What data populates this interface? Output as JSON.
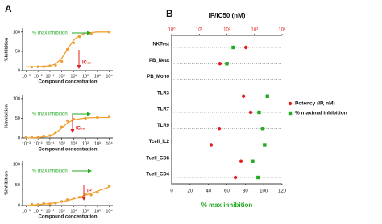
{
  "panel_labels": [
    "A",
    "B"
  ],
  "chart_data": [
    {
      "type": "dose",
      "ylabel": "%Inhibition",
      "xlabel": "Compound concentration",
      "xscale": "log",
      "xlim": [
        0.0005,
        20000
      ],
      "ylim": [
        0,
        110
      ],
      "yticks": [
        0,
        50,
        100
      ],
      "xticks": [
        {
          "value": 0.001,
          "label": "10⁻³"
        },
        {
          "value": 0.01,
          "label": "10⁻²"
        },
        {
          "value": 0.1,
          "label": "10⁻¹"
        },
        {
          "value": 1,
          "label": "10⁰"
        },
        {
          "value": 10,
          "label": "10¹"
        },
        {
          "value": 100,
          "label": "10²"
        },
        {
          "value": 1000,
          "label": "10³"
        },
        {
          "value": 10000,
          "label": "10⁴"
        }
      ],
      "annotations": [
        {
          "text": "% max inhibition",
          "color": "#22aa22"
        },
        {
          "text": "IC₅₀",
          "color": "#e02020"
        }
      ],
      "series": [
        {
          "style": "markers",
          "color": "#f0a030",
          "x": [
            0.003,
            0.01,
            0.03,
            0.1,
            0.3,
            1,
            3,
            10,
            30,
            300,
            10000
          ],
          "values": [
            9,
            10,
            10,
            12,
            14,
            24,
            55,
            72,
            88,
            95,
            100
          ]
        },
        {
          "style": "line",
          "color": "#f0a030",
          "x": [
            0.001,
            0.01,
            0.1,
            0.3,
            1,
            3,
            10,
            30,
            100,
            1000,
            10000
          ],
          "values": [
            10,
            10.2,
            12.5,
            17,
            32,
            55,
            79,
            91,
            97,
            100,
            100
          ]
        }
      ]
    },
    {
      "type": "dose",
      "ylabel": "%Inhibition",
      "xlabel": "Compound concentration",
      "xscale": "log",
      "xlim": [
        0.0005,
        20000
      ],
      "ylim": [
        0,
        110
      ],
      "yticks": [
        0,
        50,
        100
      ],
      "xticks": [
        {
          "value": 0.001,
          "label": "10⁻³"
        },
        {
          "value": 0.01,
          "label": "10⁻²"
        },
        {
          "value": 0.1,
          "label": "10⁻¹"
        },
        {
          "value": 1,
          "label": "10⁰"
        },
        {
          "value": 10,
          "label": "10¹"
        },
        {
          "value": 100,
          "label": "10²"
        },
        {
          "value": 1000,
          "label": "10³"
        },
        {
          "value": 10000,
          "label": "10⁴"
        }
      ],
      "annotations": [
        {
          "text": "% max inhibition",
          "color": "#22aa22"
        },
        {
          "text": "IC₅₀",
          "color": "#e02020"
        }
      ],
      "series": [
        {
          "style": "markers",
          "color": "#f0a030",
          "x": [
            0.001,
            0.003,
            0.01,
            0.03,
            0.1,
            0.3,
            1,
            3,
            10,
            100,
            1000,
            10000
          ],
          "values": [
            2,
            3,
            2,
            5,
            6,
            14,
            28,
            44,
            48,
            50,
            52,
            55
          ]
        },
        {
          "style": "line",
          "color": "#f0a030",
          "x": [
            0.001,
            0.01,
            0.1,
            0.3,
            1,
            3,
            10,
            100,
            1000,
            10000
          ],
          "values": [
            0,
            1,
            5,
            12,
            25,
            38,
            46,
            51,
            52,
            52
          ]
        }
      ]
    },
    {
      "type": "dose",
      "ylabel": "%Inhibition",
      "xlabel": "Compound concentration",
      "xscale": "log",
      "xlim": [
        0.0005,
        20000
      ],
      "ylim": [
        0,
        110
      ],
      "yticks": [
        0,
        50,
        100
      ],
      "xticks": [
        {
          "value": 0.001,
          "label": "10⁻³"
        },
        {
          "value": 0.01,
          "label": "10⁻²"
        },
        {
          "value": 0.1,
          "label": "10⁻¹"
        },
        {
          "value": 1,
          "label": "10⁰"
        },
        {
          "value": 10,
          "label": "10¹"
        },
        {
          "value": 100,
          "label": "10²"
        },
        {
          "value": 1000,
          "label": "10³"
        },
        {
          "value": 10000,
          "label": "10⁴"
        }
      ],
      "annotations": [
        {
          "text": "% max inhibition",
          "color": "#22aa22"
        },
        {
          "text": "IP",
          "color": "#e02020"
        }
      ],
      "series": [
        {
          "style": "markers",
          "color": "#f0a030",
          "x": [
            0.003,
            0.01,
            0.03,
            0.1,
            0.3,
            1,
            3,
            10,
            30,
            100,
            300,
            1000,
            10000
          ],
          "values": [
            3,
            2,
            6,
            4,
            6,
            10,
            14,
            18,
            20,
            28,
            26,
            32,
            48
          ]
        },
        {
          "style": "line",
          "color": "#f0a030",
          "x": [
            0.001,
            0.01,
            0.1,
            1,
            10,
            100,
            1000,
            10000
          ],
          "values": [
            0,
            2,
            5,
            9,
            16,
            25,
            35,
            45
          ]
        }
      ]
    },
    {
      "type": "dot",
      "title": "IP/IC50 (nM)",
      "xlabel": "% max inhibition",
      "legend": "right",
      "categories": [
        "NKTest",
        "PB_Neut",
        "PB_Mono",
        "TLR3",
        "TLR7",
        "TLR9",
        "Tcell_IL2",
        "Tcell_CD8",
        "Tcell_CD4"
      ],
      "xlim": [
        0,
        120
      ],
      "xticks": [
        0,
        20,
        40,
        60,
        80,
        100,
        120
      ],
      "x2scale": "log",
      "x2lim": [
        1,
        10000
      ],
      "x2ticks": [
        {
          "value": 1,
          "label": "10⁰"
        },
        {
          "value": 10,
          "label": "10¹"
        },
        {
          "value": 100,
          "label": "10²"
        },
        {
          "value": 1000,
          "label": "10³"
        },
        {
          "value": 10000,
          "label": "10⁴"
        }
      ],
      "x2color": "#e02020",
      "xlabelcolor": "#22aa22",
      "series": [
        {
          "name": "Potency (IP, nM)",
          "color": "#e02020",
          "axis": "x2",
          "marker": "circle",
          "values": [
            490,
            56,
            null,
            400,
            730,
            53,
            27,
            325,
            204
          ]
        },
        {
          "name": "% maximal inhibition",
          "color": "#22aa22",
          "marker": "square",
          "values": [
            67,
            60,
            null,
            104,
            95,
            99,
            101,
            88,
            94
          ]
        }
      ]
    }
  ]
}
